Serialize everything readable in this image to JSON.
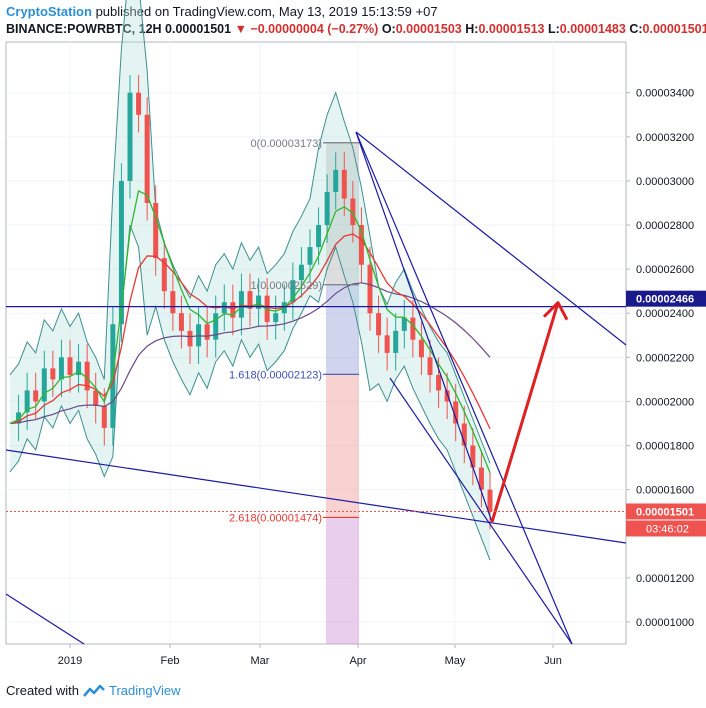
{
  "header": {
    "brand": "CryptoStation",
    "published": "published on TradingView.com, May 13, 2019 15:13:59 +07",
    "symbol": "BINANCE:POWRBTC, 12H",
    "last": "0.00001501",
    "change": "−0.00000004 (−0.27%)",
    "o_label": "O:",
    "o_value": "0.00001503",
    "h_label": "H:",
    "h_value": "0.00001513",
    "l_label": "L:",
    "l_value": "0.00001483",
    "c_label": "C:",
    "c_value": "0.00001501"
  },
  "footer": {
    "created": "Created with",
    "brand": "TradingView"
  },
  "colors": {
    "candle_up": "#26a69a",
    "candle_down": "#ef5350",
    "bb": "#3f8f8f",
    "ema_fast": "#2eb82e",
    "ema_slow": "#e53935",
    "ma_long": "#6a4a8a",
    "trendline": "#1a1aa6",
    "arrow": "#e02020",
    "price_tag_bg": "#ef5350",
    "hline_tag_bg": "#1a1a8c"
  },
  "chart_data": {
    "type": "line",
    "title": "",
    "xlabel": "",
    "ylabel": "",
    "x_ticks": [
      "2019",
      "Feb",
      "Mar",
      "Apr",
      "May",
      "Jun"
    ],
    "y_ticks": [
      "0.00003400",
      "0.00003200",
      "0.00003000",
      "0.00002800",
      "0.00002600",
      "0.00002400",
      "0.00002200",
      "0.00002000",
      "0.00001800",
      "0.00001600",
      "0.00001200",
      "0.00001000"
    ],
    "ylim": [
      9e-06,
      3.63e-05
    ],
    "price_tag": "0.00001501",
    "countdown_tag": "03:46:02",
    "hline_tag": "0.00002466",
    "fib_labels": [
      {
        "text": "0(0.00003173)",
        "value": 3.173e-05
      },
      {
        "text": "1(0.00002529)",
        "value": 2.529e-05
      },
      {
        "text": "1.618(0.00002123)",
        "value": 2.123e-05
      },
      {
        "text": "2.618(0.00001474)",
        "value": 1.474e-05
      }
    ],
    "series": [
      {
        "values": [
          1.9e-05,
          1.95e-05,
          2.05e-05,
          2e-05,
          2.15e-05,
          2.1e-05,
          2.2e-05,
          2.12e-05,
          2.18e-05,
          2.05e-05,
          1.98e-05,
          1.88e-05,
          2.35e-05,
          3e-05,
          3.4e-05,
          3.3e-05,
          2.9e-05,
          2.65e-05,
          2.5e-05,
          2.4e-05,
          2.32e-05,
          2.25e-05,
          2.35e-05,
          2.28e-05,
          2.4e-05,
          2.45e-05,
          2.38e-05,
          2.5e-05,
          2.42e-05,
          2.48e-05,
          2.36e-05,
          2.4e-05,
          2.45e-05,
          2.55e-05,
          2.62e-05,
          2.7e-05,
          2.8e-05,
          2.95e-05,
          3.05e-05,
          2.92e-05,
          2.8e-05,
          2.62e-05,
          2.4e-05,
          2.3e-05,
          2.22e-05,
          2.32e-05,
          2.38e-05,
          2.28e-05,
          2.2e-05,
          2.12e-05,
          2.05e-05,
          2e-05,
          1.9e-05,
          1.8e-05,
          1.7e-05,
          1.6e-05,
          1.5e-05
        ]
      }
    ]
  }
}
